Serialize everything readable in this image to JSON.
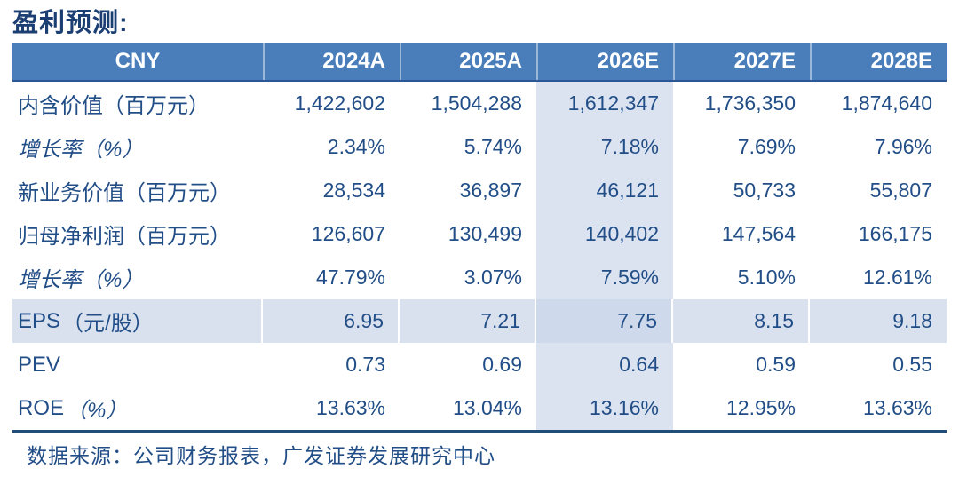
{
  "title": "盈利预测:",
  "table": {
    "header": {
      "label": "CNY",
      "years": [
        "2024A",
        "2025A",
        "2026E",
        "2027E",
        "2028E"
      ]
    },
    "highlight_column": "2026E",
    "highlight_column_index": 2,
    "rows": [
      {
        "label": "内含价值（百万元）",
        "italic": false,
        "highlight": false,
        "values": [
          "1,422,602",
          "1,504,288",
          "1,612,347",
          "1,736,350",
          "1,874,640"
        ]
      },
      {
        "label": "增长率（%）",
        "italic": true,
        "highlight": false,
        "values": [
          "2.34%",
          "5.74%",
          "7.18%",
          "7.69%",
          "7.96%"
        ]
      },
      {
        "label": "新业务价值（百万元）",
        "italic": false,
        "highlight": false,
        "values": [
          "28,534",
          "36,897",
          "46,121",
          "50,733",
          "55,807"
        ]
      },
      {
        "label": "归母净利润（百万元）",
        "italic": false,
        "highlight": false,
        "values": [
          "126,607",
          "130,499",
          "140,402",
          "147,564",
          "166,175"
        ]
      },
      {
        "label": "增长率（%）",
        "italic": true,
        "highlight": false,
        "values": [
          "47.79%",
          "3.07%",
          "7.59%",
          "5.10%",
          "12.61%"
        ]
      },
      {
        "label": "EPS",
        "note": "（元/股）",
        "italic": false,
        "note_italic": false,
        "highlight": true,
        "values": [
          "6.95",
          "7.21",
          "7.75",
          "8.15",
          "9.18"
        ]
      },
      {
        "label": "PEV",
        "italic": false,
        "highlight": false,
        "values": [
          "0.73",
          "0.69",
          "0.64",
          "0.59",
          "0.55"
        ]
      },
      {
        "label": "ROE",
        "note": "（%）",
        "italic": false,
        "note_italic": true,
        "highlight": false,
        "values": [
          "13.63%",
          "13.04%",
          "13.16%",
          "12.95%",
          "13.63%"
        ]
      }
    ]
  },
  "source": "数据来源：公司财务报表，广发证券发展研究中心",
  "colors": {
    "header_bg": "#4A7EBB",
    "header_border": "#2B5797",
    "column_highlight": "#DBE2F0",
    "row_highlight": "#D9E1EF",
    "text": "#224E87",
    "title_text": "#1B3E73",
    "bottom_border": "#1F4E79"
  },
  "chart_data": {
    "type": "table",
    "title": "盈利预测:",
    "columns": [
      "CNY",
      "2024A",
      "2025A",
      "2026E",
      "2027E",
      "2028E"
    ],
    "rows": [
      [
        "内含价值（百万元）",
        "1,422,602",
        "1,504,288",
        "1,612,347",
        "1,736,350",
        "1,874,640"
      ],
      [
        "增长率（%）",
        "2.34%",
        "5.74%",
        "7.18%",
        "7.69%",
        "7.96%"
      ],
      [
        "新业务价值（百万元）",
        "28,534",
        "36,897",
        "46,121",
        "50,733",
        "55,807"
      ],
      [
        "归母净利润（百万元）",
        "126,607",
        "130,499",
        "140,402",
        "147,564",
        "166,175"
      ],
      [
        "增长率（%）",
        "47.79%",
        "3.07%",
        "7.59%",
        "5.10%",
        "12.61%"
      ],
      [
        "EPS（元/股）",
        "6.95",
        "7.21",
        "7.75",
        "8.15",
        "9.18"
      ],
      [
        "PEV",
        "0.73",
        "0.69",
        "0.64",
        "0.59",
        "0.55"
      ],
      [
        "ROE（%）",
        "13.63%",
        "13.04%",
        "13.16%",
        "12.95%",
        "13.63%"
      ]
    ],
    "annotations": [
      "数据来源：公司财务报表，广发证券发展研究中心"
    ],
    "layout_hints": {
      "highlighted_column": "2026E",
      "highlighted_row": "EPS（元/股）"
    }
  }
}
